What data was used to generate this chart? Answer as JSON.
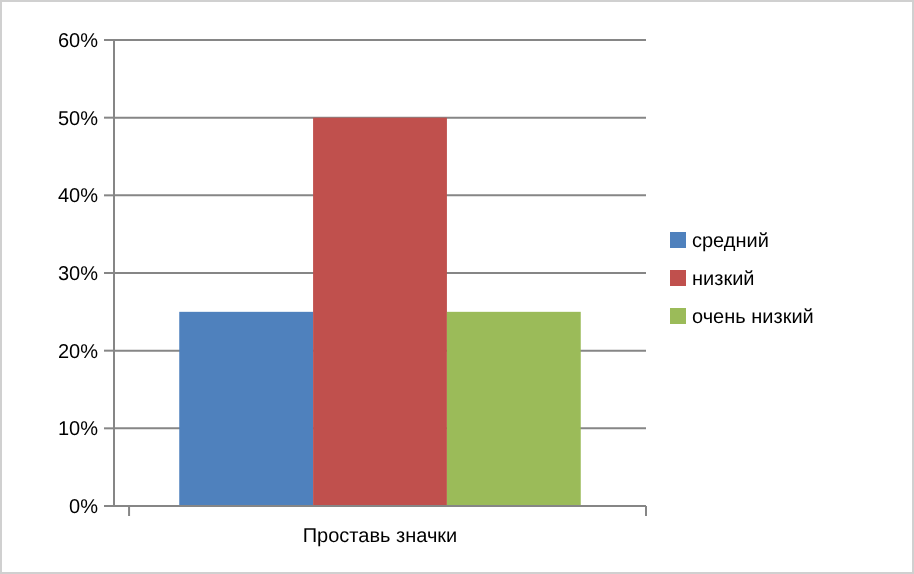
{
  "chart_data": {
    "type": "bar",
    "categories": [
      "Проставь значки"
    ],
    "series": [
      {
        "name": "средний",
        "color": "#4f81bd",
        "values": [
          25
        ]
      },
      {
        "name": "низкий",
        "color": "#c0504d",
        "values": [
          50
        ]
      },
      {
        "name": "очень низкий",
        "color": "#9bbb59",
        "values": [
          25
        ]
      }
    ],
    "ylim": [
      0,
      60
    ],
    "yticks": [
      {
        "value": 0,
        "label": "0%"
      },
      {
        "value": 10,
        "label": "10%"
      },
      {
        "value": 20,
        "label": "20%"
      },
      {
        "value": 30,
        "label": "30%"
      },
      {
        "value": 40,
        "label": "40%"
      },
      {
        "value": 50,
        "label": "50%"
      },
      {
        "value": 60,
        "label": "60%"
      }
    ],
    "grid": "y",
    "legend": "right"
  }
}
